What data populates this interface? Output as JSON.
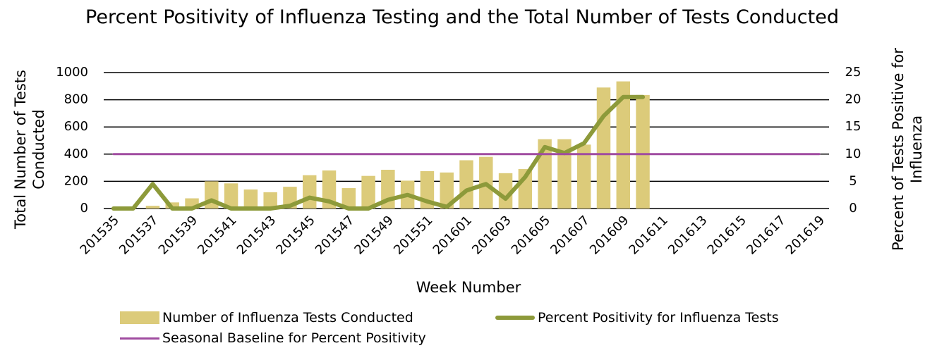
{
  "chart_data": {
    "type": "bar",
    "title": "Percent Positivity of Influenza Testing and the Total Number of Tests Conducted",
    "x_label": "Week Number",
    "y_label": "Total Number of Tests Conducted",
    "y2_label": "Percent of Tests Positive for Influenza",
    "categories": [
      "201535",
      null,
      "201537",
      null,
      "201539",
      null,
      "201541",
      null,
      "201543",
      null,
      "201545",
      null,
      "201547",
      null,
      "201549",
      null,
      "201551",
      null,
      "201601",
      null,
      "201603",
      null,
      "201605",
      null,
      "201607",
      null,
      "201609",
      null,
      "201611",
      null,
      "201613",
      null,
      "201615",
      null,
      "201617",
      null,
      "201619"
    ],
    "ylim": [
      0,
      1000
    ],
    "yticks": [
      0,
      200,
      400,
      600,
      800,
      1000
    ],
    "y2lim": [
      0,
      25
    ],
    "y2ticks": [
      0,
      5,
      10,
      15,
      20,
      25
    ],
    "grid": true,
    "series": [
      {
        "name": "Number of Influenza Tests Conducted",
        "type": "bar",
        "color": "#dccb7a",
        "values": [
          0,
          0,
          20,
          45,
          75,
          200,
          185,
          140,
          120,
          160,
          245,
          280,
          150,
          240,
          285,
          205,
          275,
          265,
          355,
          380,
          260,
          290,
          510,
          510,
          470,
          890,
          935,
          835,
          null,
          null,
          null,
          null,
          null,
          null,
          null,
          null,
          null
        ]
      },
      {
        "name": "Percent Positivity for Influenza Tests",
        "type": "line",
        "axis": "y2",
        "color": "#8d9a3a",
        "values": [
          0,
          0,
          4.5,
          0,
          0,
          1.5,
          0,
          0,
          0,
          0.5,
          2,
          1.3,
          0,
          0,
          1.6,
          2.5,
          1.3,
          0.3,
          3.3,
          4.5,
          1.8,
          5.8,
          11.3,
          10.2,
          12,
          17,
          20.5,
          20.5,
          null,
          null,
          null,
          null,
          null,
          null,
          null,
          null,
          null
        ]
      },
      {
        "name": "Seasonal Baseline for Percent Positivity",
        "type": "line",
        "axis": "y2",
        "color": "#a04ca0",
        "values": [
          10,
          10,
          10,
          10,
          10,
          10,
          10,
          10,
          10,
          10,
          10,
          10,
          10,
          10,
          10,
          10,
          10,
          10,
          10,
          10,
          10,
          10,
          10,
          10,
          10,
          10,
          10,
          10,
          10,
          10,
          10,
          10,
          10,
          10,
          10,
          10,
          10
        ]
      }
    ]
  }
}
